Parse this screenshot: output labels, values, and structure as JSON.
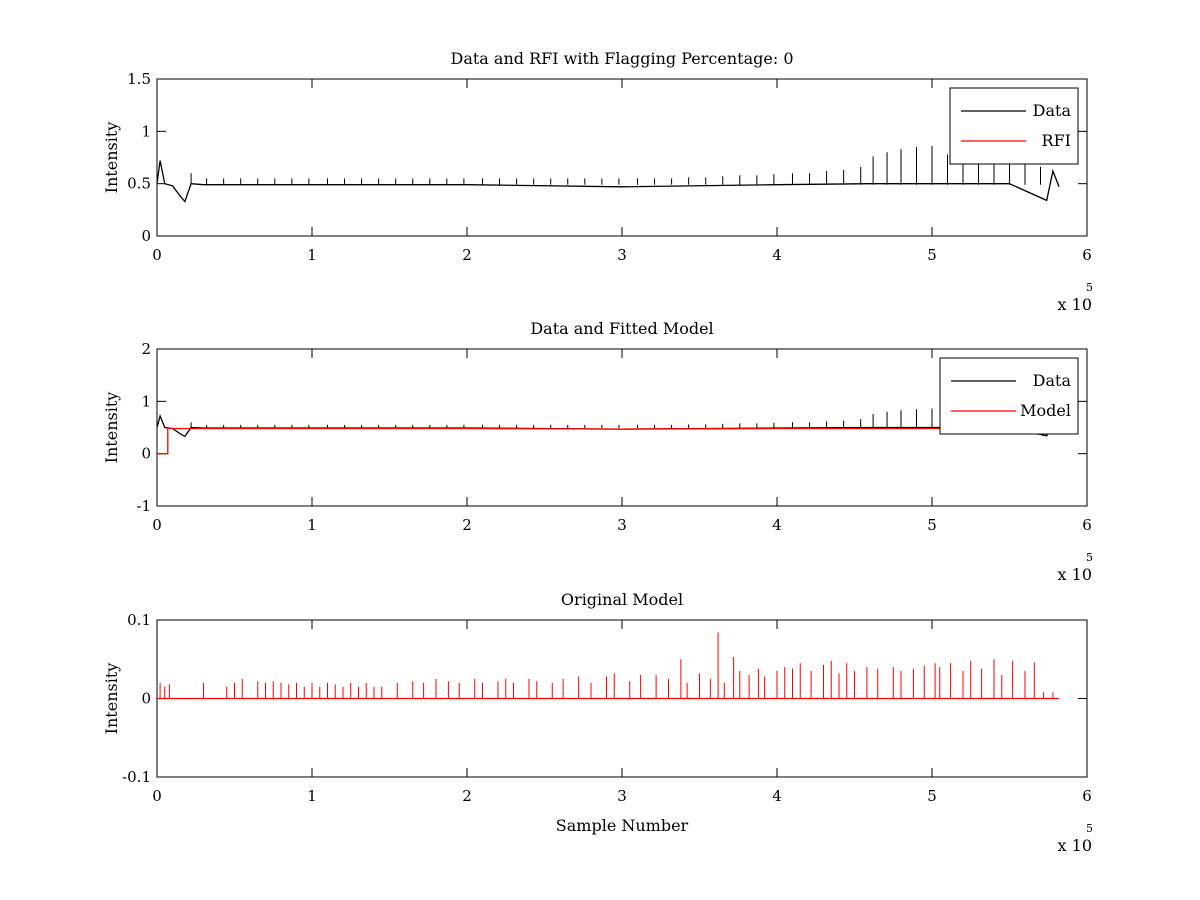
{
  "chart_data": [
    {
      "type": "line",
      "title": "Data and RFI with Flagging Percentage: 0",
      "xlabel": "",
      "ylabel": "Intensity",
      "xlim": [
        0,
        6
      ],
      "ylim": [
        0,
        1.5
      ],
      "x_multiplier": "x 10",
      "x_multiplier_exp": "5",
      "xticks": [
        "0",
        "1",
        "2",
        "3",
        "4",
        "5",
        "6"
      ],
      "yticks": [
        "0",
        "0.5",
        "1",
        "1.5"
      ],
      "legend_position": "top-right",
      "series": [
        {
          "name": "Data",
          "color": "#000000",
          "baseline": 0.49,
          "x": [
            0,
            0.02,
            0.05,
            0.1,
            0.15,
            0.18,
            0.22,
            0.3,
            1.0,
            2.0,
            3.0,
            4.0,
            4.6,
            5.0,
            5.5,
            5.74,
            5.78,
            5.82
          ],
          "y": [
            0.5,
            0.72,
            0.5,
            0.48,
            0.38,
            0.33,
            0.5,
            0.49,
            0.49,
            0.49,
            0.47,
            0.49,
            0.5,
            0.5,
            0.5,
            0.34,
            0.62,
            0.47
          ],
          "spike_x": [
            0.22,
            0.32,
            0.43,
            0.54,
            0.65,
            0.76,
            0.87,
            0.98,
            1.1,
            1.21,
            1.32,
            1.43,
            1.54,
            1.65,
            1.76,
            1.87,
            1.98,
            2.1,
            2.21,
            2.32,
            2.43,
            2.54,
            2.65,
            2.76,
            2.87,
            2.98,
            3.1,
            3.21,
            3.32,
            3.43,
            3.54,
            3.65,
            3.76,
            3.87,
            3.98,
            4.1,
            4.21,
            4.32,
            4.43,
            4.54,
            4.62,
            4.71,
            4.8,
            4.9,
            5.0,
            5.1,
            5.2,
            5.3,
            5.4,
            5.5,
            5.6,
            5.7
          ],
          "spike_y": [
            0.6,
            0.55,
            0.55,
            0.55,
            0.55,
            0.55,
            0.55,
            0.55,
            0.55,
            0.55,
            0.55,
            0.55,
            0.55,
            0.55,
            0.55,
            0.55,
            0.55,
            0.55,
            0.55,
            0.55,
            0.55,
            0.55,
            0.55,
            0.55,
            0.55,
            0.55,
            0.55,
            0.55,
            0.55,
            0.56,
            0.56,
            0.57,
            0.58,
            0.58,
            0.59,
            0.6,
            0.6,
            0.62,
            0.63,
            0.66,
            0.76,
            0.8,
            0.83,
            0.85,
            0.86,
            0.78,
            0.78,
            0.78,
            0.78,
            0.78,
            0.78,
            0.66
          ]
        },
        {
          "name": "RFI",
          "color": "#ff0000",
          "x": [],
          "y": []
        }
      ]
    },
    {
      "type": "line",
      "title": "Data and Fitted Model",
      "xlabel": "",
      "ylabel": "Intensity",
      "xlim": [
        0,
        6
      ],
      "ylim": [
        -1,
        2
      ],
      "x_multiplier": "x 10",
      "x_multiplier_exp": "5",
      "xticks": [
        "0",
        "1",
        "2",
        "3",
        "4",
        "5",
        "6"
      ],
      "yticks": [
        "-1",
        "0",
        "1",
        "2"
      ],
      "legend_position": "top-right",
      "series": [
        {
          "name": "Data",
          "color": "#000000",
          "baseline": 0.49,
          "x": [
            0,
            0.02,
            0.05,
            0.1,
            0.15,
            0.18,
            0.22,
            0.3,
            1.0,
            2.0,
            3.0,
            4.0,
            4.6,
            5.0,
            5.5,
            5.74,
            5.78,
            5.82
          ],
          "y": [
            0.5,
            0.72,
            0.5,
            0.48,
            0.38,
            0.33,
            0.5,
            0.49,
            0.49,
            0.49,
            0.47,
            0.49,
            0.5,
            0.5,
            0.5,
            0.34,
            0.62,
            0.47
          ],
          "spike_x": [
            0.22,
            0.32,
            0.43,
            0.54,
            0.65,
            0.76,
            0.87,
            0.98,
            1.1,
            1.21,
            1.32,
            1.43,
            1.54,
            1.65,
            1.76,
            1.87,
            1.98,
            2.1,
            2.21,
            2.32,
            2.43,
            2.54,
            2.65,
            2.76,
            2.87,
            2.98,
            3.1,
            3.21,
            3.32,
            3.43,
            3.54,
            3.65,
            3.76,
            3.87,
            3.98,
            4.1,
            4.21,
            4.32,
            4.43,
            4.54,
            4.62,
            4.71,
            4.8,
            4.9,
            5.0,
            5.1,
            5.2,
            5.3,
            5.4,
            5.5,
            5.6,
            5.7
          ],
          "spike_y": [
            0.6,
            0.55,
            0.55,
            0.55,
            0.55,
            0.55,
            0.55,
            0.55,
            0.55,
            0.55,
            0.55,
            0.55,
            0.55,
            0.55,
            0.55,
            0.55,
            0.55,
            0.55,
            0.55,
            0.55,
            0.55,
            0.55,
            0.55,
            0.55,
            0.55,
            0.55,
            0.55,
            0.55,
            0.55,
            0.56,
            0.56,
            0.57,
            0.58,
            0.58,
            0.59,
            0.6,
            0.6,
            0.62,
            0.63,
            0.66,
            0.76,
            0.8,
            0.83,
            0.85,
            0.86,
            0.78,
            0.78,
            0.78,
            0.78,
            0.78,
            0.78,
            0.66
          ]
        },
        {
          "name": "Model",
          "color": "#ff0000",
          "x": [
            0,
            0.07,
            0.07,
            0.1,
            0.5,
            1.0,
            2.0,
            3.0,
            4.0,
            5.0,
            5.82
          ],
          "y": [
            0,
            0,
            0.48,
            0.48,
            0.48,
            0.48,
            0.48,
            0.47,
            0.48,
            0.48,
            0.48
          ]
        }
      ]
    },
    {
      "type": "line",
      "title": "Original Model",
      "xlabel": "Sample Number",
      "ylabel": "Intensity",
      "xlim": [
        0,
        6
      ],
      "ylim": [
        -0.1,
        0.1
      ],
      "x_multiplier": "x 10",
      "x_multiplier_exp": "5",
      "xticks": [
        "0",
        "1",
        "2",
        "3",
        "4",
        "5",
        "6"
      ],
      "yticks": [
        "-0.1",
        "0",
        "0.1"
      ],
      "series": [
        {
          "color": "#ff0000",
          "baseline": 0.0,
          "spike_x": [
            0.02,
            0.05,
            0.08,
            0.3,
            0.45,
            0.5,
            0.55,
            0.65,
            0.7,
            0.75,
            0.8,
            0.85,
            0.9,
            0.95,
            1.0,
            1.05,
            1.1,
            1.15,
            1.2,
            1.25,
            1.3,
            1.35,
            1.4,
            1.45,
            1.55,
            1.65,
            1.72,
            1.8,
            1.88,
            1.95,
            2.05,
            2.1,
            2.2,
            2.25,
            2.3,
            2.4,
            2.45,
            2.55,
            2.62,
            2.72,
            2.8,
            2.9,
            2.95,
            3.05,
            3.12,
            3.22,
            3.3,
            3.38,
            3.42,
            3.5,
            3.57,
            3.62,
            3.66,
            3.72,
            3.76,
            3.82,
            3.88,
            3.92,
            4.0,
            4.05,
            4.1,
            4.15,
            4.22,
            4.3,
            4.35,
            4.4,
            4.45,
            4.5,
            4.58,
            4.65,
            4.75,
            4.8,
            4.88,
            4.95,
            5.02,
            5.05,
            5.12,
            5.2,
            5.25,
            5.32,
            5.4,
            5.45,
            5.52,
            5.6,
            5.66,
            5.72,
            5.78
          ],
          "spike_y": [
            0.02,
            0.015,
            0.018,
            0.02,
            0.015,
            0.02,
            0.025,
            0.022,
            0.02,
            0.022,
            0.02,
            0.018,
            0.02,
            0.015,
            0.02,
            0.015,
            0.02,
            0.018,
            0.015,
            0.02,
            0.015,
            0.02,
            0.015,
            0.015,
            0.02,
            0.022,
            0.02,
            0.025,
            0.022,
            0.02,
            0.025,
            0.02,
            0.022,
            0.025,
            0.02,
            0.025,
            0.022,
            0.02,
            0.025,
            0.028,
            0.02,
            0.028,
            0.032,
            0.022,
            0.03,
            0.03,
            0.025,
            0.05,
            0.02,
            0.032,
            0.025,
            0.084,
            0.02,
            0.053,
            0.035,
            0.03,
            0.038,
            0.028,
            0.035,
            0.04,
            0.038,
            0.045,
            0.035,
            0.043,
            0.048,
            0.032,
            0.045,
            0.035,
            0.04,
            0.038,
            0.04,
            0.035,
            0.038,
            0.042,
            0.045,
            0.04,
            0.045,
            0.035,
            0.048,
            0.038,
            0.05,
            0.03,
            0.048,
            0.035,
            0.046,
            0.008,
            0.008
          ]
        }
      ]
    }
  ]
}
